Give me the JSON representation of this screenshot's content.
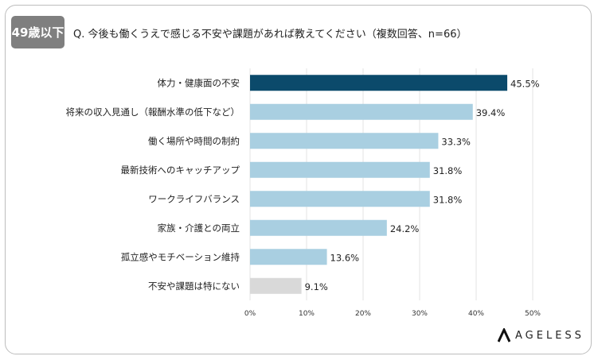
{
  "badge": "49歳以下",
  "question": "Q. 今後も働くうえで感じる不安や課題があれば教えてください（複数回答、n=66）",
  "logo": "AGELESS",
  "chart_data": {
    "type": "bar",
    "orientation": "horizontal",
    "categories": [
      "体力・健康面の不安",
      "将来の収入見通し（報酬水準の低下など）",
      "働く場所や時間の制約",
      "最新技術へのキャッチアップ",
      "ワークライフバランス",
      "家族・介護との両立",
      "孤立感やモチベーション維持",
      "不安や課題は特にない"
    ],
    "values": [
      45.5,
      39.4,
      33.3,
      31.8,
      31.8,
      24.2,
      13.6,
      9.1
    ],
    "data_labels": [
      "45.5%",
      "39.4%",
      "33.3%",
      "31.8%",
      "31.8%",
      "24.2%",
      "13.6%",
      "9.1%"
    ],
    "colors": [
      "#0b4a6b",
      "#a9cfe1",
      "#a9cfe1",
      "#a9cfe1",
      "#a9cfe1",
      "#a9cfe1",
      "#a9cfe1",
      "#d9d9d9"
    ],
    "xlim": [
      0,
      50
    ],
    "xticks": [
      "0%",
      "10%",
      "20%",
      "30%",
      "40%",
      "50%"
    ],
    "grid": true
  }
}
